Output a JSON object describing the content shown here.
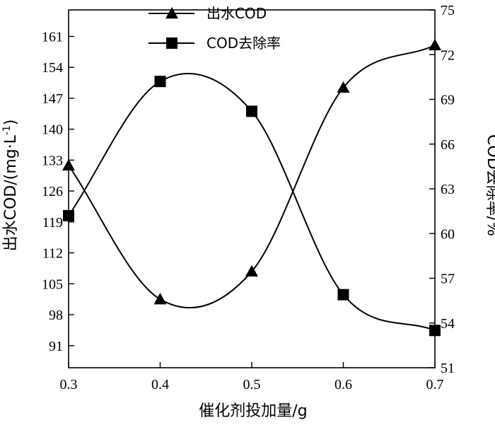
{
  "chart_data": {
    "type": "line",
    "x": [
      0.3,
      0.4,
      0.5,
      0.6,
      0.7
    ],
    "xlabel": "催化剂投加量/g",
    "ylabel_left": "出水COD/(mg·L",
    "ylabel_left_sup": "-1",
    "ylabel_left_end": ")",
    "ylabel_right": "COD去除率/%",
    "xlim": [
      0.3,
      0.7
    ],
    "ylim_left": [
      86,
      167
    ],
    "ylim_right": [
      51,
      75
    ],
    "x_ticks": [
      "0.3",
      "0.4",
      "0.5",
      "0.6",
      "0.7"
    ],
    "y_left_ticks": [
      "91",
      "98",
      "105",
      "112",
      "119",
      "126",
      "133",
      "140",
      "147",
      "154",
      "161"
    ],
    "y_right_ticks": [
      "51",
      "54",
      "57",
      "60",
      "63",
      "66",
      "69",
      "72",
      "75"
    ],
    "series": [
      {
        "name": "出水COD",
        "marker": "triangle",
        "axis": "left",
        "values": [
          131.8,
          101.5,
          107.8,
          149.4,
          159.0
        ]
      },
      {
        "name": "COD去除率",
        "marker": "square",
        "axis": "right",
        "values": [
          61.2,
          70.2,
          68.2,
          55.9,
          53.5
        ]
      }
    ],
    "legend_position": "top-center",
    "grid": false
  }
}
